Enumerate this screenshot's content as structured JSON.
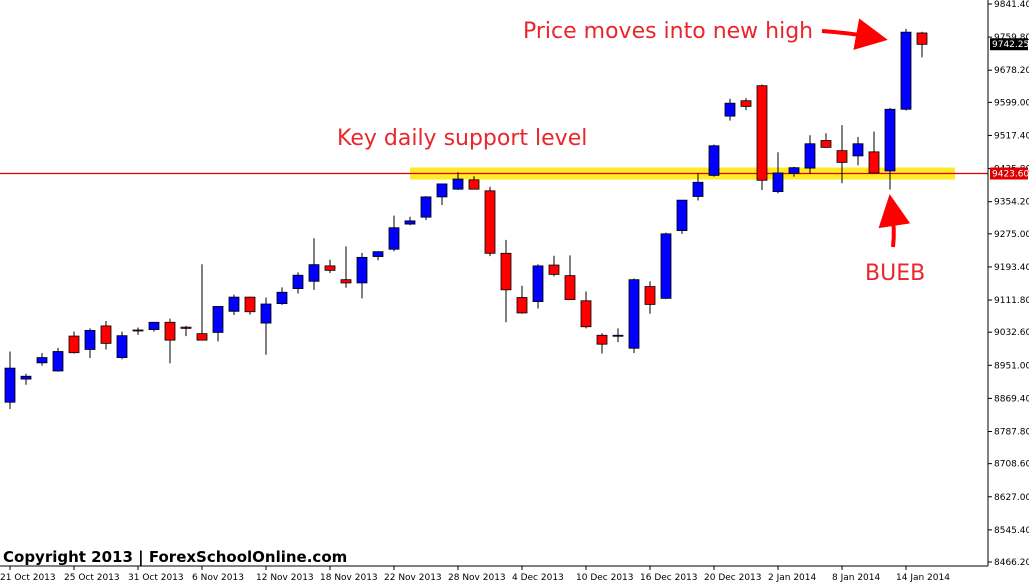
{
  "chart_data": {
    "type": "candlestick",
    "colors": {
      "bull": "#0000ff",
      "bear": "#ff0000",
      "wick": "#000000",
      "support_line": "#dd0000",
      "support_band": "#ffe600",
      "annotation": "#e8262b",
      "current_price_box": "#000000"
    },
    "ylim": [
      8466.2,
      9841.4
    ],
    "y_ticks": [
      "9841.40",
      "9759.80",
      "9678.20",
      "9599.00",
      "9517.40",
      "9435.80",
      "9354.20",
      "9275.00",
      "9193.40",
      "9111.80",
      "9032.60",
      "8951.00",
      "8869.40",
      "8787.80",
      "8708.60",
      "8627.00",
      "8545.40",
      "8466.20"
    ],
    "x_ticks": [
      {
        "label": "21 Oct 2013",
        "index": 0
      },
      {
        "label": "25 Oct 2013",
        "index": 4
      },
      {
        "label": "31 Oct 2013",
        "index": 8
      },
      {
        "label": "6 Nov 2013",
        "index": 12
      },
      {
        "label": "12 Nov 2013",
        "index": 16
      },
      {
        "label": "18 Nov 2013",
        "index": 20
      },
      {
        "label": "22 Nov 2013",
        "index": 24
      },
      {
        "label": "28 Nov 2013",
        "index": 28
      },
      {
        "label": "4 Dec 2013",
        "index": 32
      },
      {
        "label": "10 Dec 2013",
        "index": 36
      },
      {
        "label": "16 Dec 2013",
        "index": 40
      },
      {
        "label": "20 Dec 2013",
        "index": 44
      },
      {
        "label": "2 Jan 2014",
        "index": 48
      },
      {
        "label": "8 Jan 2014",
        "index": 52
      },
      {
        "label": "14 Jan 2014",
        "index": 56
      }
    ],
    "support_level": 9423.6,
    "support_level_label": "9423.60",
    "current_price": 9742.25,
    "current_price_label": "9742.25",
    "candles": [
      {
        "o": 8860,
        "h": 8985,
        "l": 8843,
        "c": 8944
      },
      {
        "o": 8917,
        "h": 8930,
        "l": 8903,
        "c": 8924
      },
      {
        "o": 8957,
        "h": 8981,
        "l": 8950,
        "c": 8970
      },
      {
        "o": 8937,
        "h": 8994,
        "l": 8935,
        "c": 8985
      },
      {
        "o": 9023,
        "h": 9034,
        "l": 8980,
        "c": 8982
      },
      {
        "o": 8990,
        "h": 9042,
        "l": 8969,
        "c": 9037
      },
      {
        "o": 9048,
        "h": 9060,
        "l": 8990,
        "c": 9005
      },
      {
        "o": 8970,
        "h": 9034,
        "l": 8966,
        "c": 9024
      },
      {
        "o": 9038,
        "h": 9044,
        "l": 9026,
        "c": 9036
      },
      {
        "o": 9039,
        "h": 9058,
        "l": 9034,
        "c": 9057
      },
      {
        "o": 9057,
        "h": 9066,
        "l": 8956,
        "c": 9013
      },
      {
        "o": 9045,
        "h": 9048,
        "l": 9023,
        "c": 9042
      },
      {
        "o": 9029,
        "h": 9200,
        "l": 9012,
        "c": 9013
      },
      {
        "o": 9032,
        "h": 9088,
        "l": 9010,
        "c": 9096
      },
      {
        "o": 9084,
        "h": 9125,
        "l": 9075,
        "c": 9119
      },
      {
        "o": 9119,
        "h": 9120,
        "l": 9076,
        "c": 9083
      },
      {
        "o": 9055,
        "h": 9118,
        "l": 8977,
        "c": 9102
      },
      {
        "o": 9103,
        "h": 9143,
        "l": 9100,
        "c": 9131
      },
      {
        "o": 9140,
        "h": 9180,
        "l": 9128,
        "c": 9173
      },
      {
        "o": 9158,
        "h": 9264,
        "l": 9137,
        "c": 9199
      },
      {
        "o": 9196,
        "h": 9211,
        "l": 9178,
        "c": 9185
      },
      {
        "o": 9162,
        "h": 9244,
        "l": 9142,
        "c": 9154
      },
      {
        "o": 9154,
        "h": 9228,
        "l": 9116,
        "c": 9217
      },
      {
        "o": 9219,
        "h": 9232,
        "l": 9210,
        "c": 9231
      },
      {
        "o": 9237,
        "h": 9320,
        "l": 9232,
        "c": 9290
      },
      {
        "o": 9299,
        "h": 9317,
        "l": 9296,
        "c": 9307
      },
      {
        "o": 9316,
        "h": 9368,
        "l": 9309,
        "c": 9366
      },
      {
        "o": 9366,
        "h": 9393,
        "l": 9346,
        "c": 9398
      },
      {
        "o": 9385,
        "h": 9427,
        "l": 9383,
        "c": 9410
      },
      {
        "o": 9408,
        "h": 9417,
        "l": 9387,
        "c": 9385
      },
      {
        "o": 9381,
        "h": 9391,
        "l": 9220,
        "c": 9227
      },
      {
        "o": 9227,
        "h": 9260,
        "l": 9057,
        "c": 9137
      },
      {
        "o": 9118,
        "h": 9147,
        "l": 9078,
        "c": 9080
      },
      {
        "o": 9108,
        "h": 9200,
        "l": 9091,
        "c": 9196
      },
      {
        "o": 9198,
        "h": 9221,
        "l": 9170,
        "c": 9175
      },
      {
        "o": 9172,
        "h": 9222,
        "l": 9112,
        "c": 9113
      },
      {
        "o": 9110,
        "h": 9133,
        "l": 9042,
        "c": 9046
      },
      {
        "o": 9025,
        "h": 9030,
        "l": 8980,
        "c": 9003
      },
      {
        "o": 9023,
        "h": 9042,
        "l": 9008,
        "c": 9025
      },
      {
        "o": 8993,
        "h": 9165,
        "l": 8981,
        "c": 9162
      },
      {
        "o": 9145,
        "h": 9158,
        "l": 9078,
        "c": 9101
      },
      {
        "o": 9116,
        "h": 9278,
        "l": 9114,
        "c": 9275
      },
      {
        "o": 9283,
        "h": 9357,
        "l": 9275,
        "c": 9358
      },
      {
        "o": 9367,
        "h": 9425,
        "l": 9357,
        "c": 9402
      },
      {
        "o": 9419,
        "h": 9495,
        "l": 9416,
        "c": 9492
      },
      {
        "o": 9565,
        "h": 9608,
        "l": 9554,
        "c": 9597
      },
      {
        "o": 9603,
        "h": 9609,
        "l": 9580,
        "c": 9589
      },
      {
        "o": 9640,
        "h": 9643,
        "l": 9383,
        "c": 9407
      },
      {
        "o": 9379,
        "h": 9476,
        "l": 9375,
        "c": 9425
      },
      {
        "o": 9424,
        "h": 9440,
        "l": 9416,
        "c": 9438
      },
      {
        "o": 9437,
        "h": 9518,
        "l": 9423,
        "c": 9497
      },
      {
        "o": 9505,
        "h": 9523,
        "l": 9490,
        "c": 9488
      },
      {
        "o": 9480,
        "h": 9543,
        "l": 9400,
        "c": 9451
      },
      {
        "o": 9467,
        "h": 9514,
        "l": 9444,
        "c": 9497
      },
      {
        "o": 9477,
        "h": 9527,
        "l": 9430,
        "c": 9425
      },
      {
        "o": 9430,
        "h": 9585,
        "l": 9384,
        "c": 9582
      },
      {
        "o": 9582,
        "h": 9780,
        "l": 9579,
        "c": 9772
      },
      {
        "o": 9770,
        "h": 9773,
        "l": 9710,
        "c": 9742
      }
    ]
  },
  "annotations": {
    "new_high": "Price moves into new high",
    "support": "Key daily support level",
    "bueb": "BUEB"
  },
  "footer": {
    "copyright": "Copyright 2013 | ForexSchoolOnline.com"
  }
}
